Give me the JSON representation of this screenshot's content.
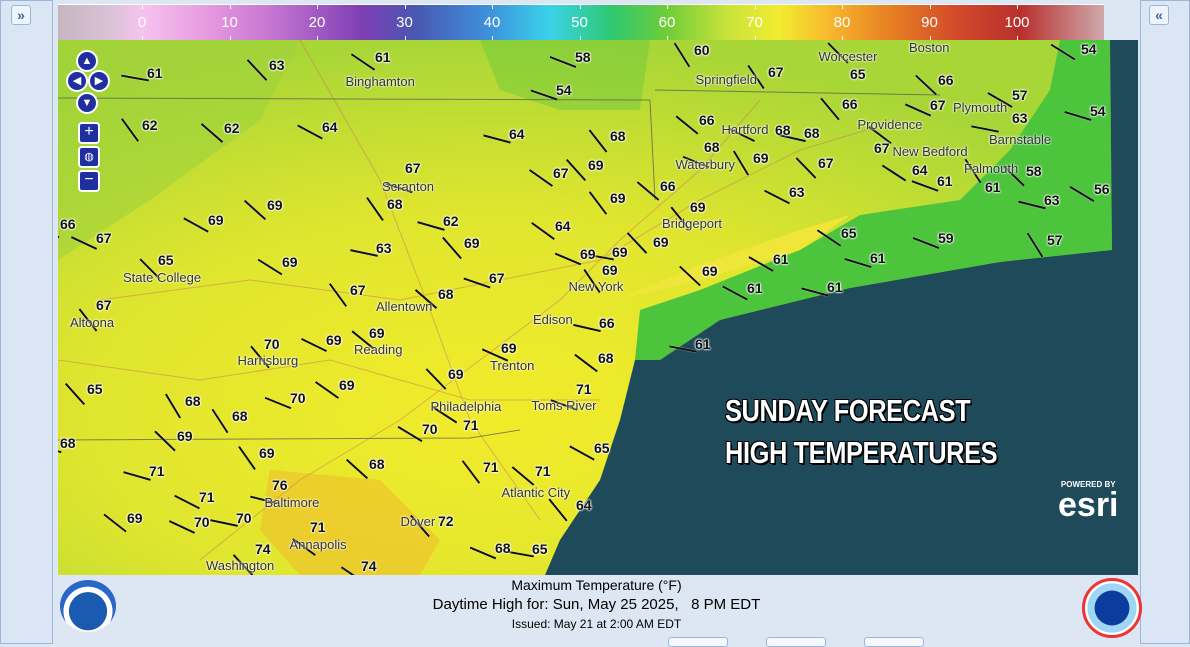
{
  "panels": {
    "left_toggle": "»",
    "right_toggle": "«"
  },
  "legend": {
    "ticks": [
      "0",
      "10",
      "20",
      "30",
      "40",
      "50",
      "60",
      "70",
      "80",
      "90",
      "100"
    ],
    "unit": "°F"
  },
  "map": {
    "headline": [
      "SUNDAY FORECAST",
      "HIGH TEMPERATURES"
    ],
    "attribution": {
      "powered_by": "POWERED BY",
      "brand": "esri"
    },
    "colors": {
      "land": "#c5dc2e",
      "ocean": "#1e4a5a",
      "shelf": "#4cc43c"
    },
    "temperatures": [
      "61",
      "63",
      "61",
      "58",
      "60",
      "65",
      "54",
      "54",
      "67",
      "66",
      "57",
      "54",
      "62",
      "62",
      "64",
      "64",
      "68",
      "66",
      "68",
      "68",
      "66",
      "67",
      "67",
      "63",
      "69",
      "67",
      "68",
      "69",
      "67",
      "64",
      "61",
      "61",
      "58",
      "56",
      "67",
      "68",
      "69",
      "69",
      "62",
      "69",
      "66",
      "63",
      "63",
      "69",
      "66",
      "67",
      "63",
      "69",
      "64",
      "69",
      "69",
      "69",
      "65",
      "59",
      "57",
      "65",
      "69",
      "67",
      "69",
      "69",
      "61",
      "61",
      "67",
      "68",
      "61",
      "61",
      "67",
      "69",
      "69",
      "66",
      "70",
      "68",
      "69",
      "61",
      "65",
      "69",
      "70",
      "68",
      "69",
      "71",
      "71",
      "68",
      "69",
      "70",
      "68",
      "69",
      "68",
      "65",
      "71",
      "71",
      "71",
      "71",
      "76",
      "64",
      "69",
      "70",
      "70",
      "72",
      "71",
      "68",
      "65",
      "74",
      "74"
    ],
    "cities": [
      "Binghamton",
      "Springfield",
      "Worcester",
      "Boston",
      "Plymouth",
      "Providence",
      "New Bedford",
      "Barnstable",
      "Hartford",
      "Waterbury",
      "Falmouth",
      "Scranton",
      "Bridgeport",
      "State College",
      "New York",
      "Allentown",
      "Edison",
      "Altoona",
      "Reading",
      "Harrisburg",
      "Trenton",
      "Philadelphia",
      "Toms River",
      "Atlantic City",
      "Baltimore",
      "Dover",
      "Annapolis",
      "Washington"
    ]
  },
  "footer": {
    "title": "Maximum Temperature (°F)",
    "valid": "Daytime High for: Sun, May 25 2025,   8 PM EDT",
    "issued": "Issued: May 21 at 2:00 AM EDT"
  }
}
